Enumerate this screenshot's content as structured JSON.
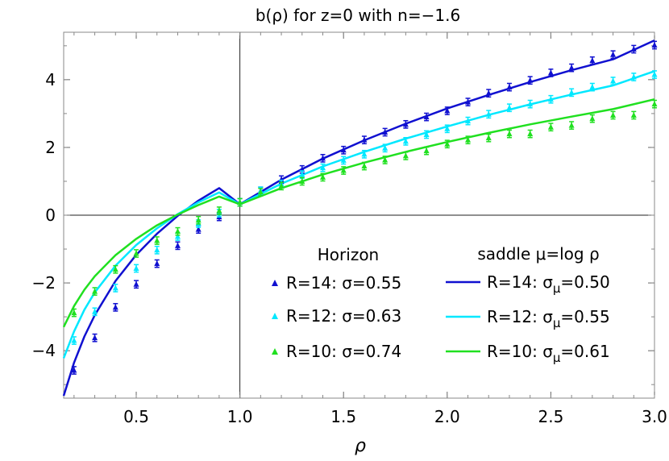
{
  "chart_data": {
    "type": "line",
    "title": "b(ρ) for z=0 with n=−1.6",
    "xlabel": "ρ",
    "ylabel": "",
    "xlim": [
      0.15,
      3.0
    ],
    "ylim": [
      -5.4,
      5.4
    ],
    "x_ticks": [
      0.5,
      1.0,
      1.5,
      2.0,
      2.5,
      3.0
    ],
    "x_tick_labels": [
      "0.5",
      "1.0",
      "1.5",
      "2.0",
      "2.5",
      "3.0"
    ],
    "y_ticks": [
      -4,
      -2,
      0,
      2,
      4
    ],
    "y_tick_labels": [
      "−4",
      "−2",
      "0",
      "2",
      "4"
    ],
    "grid": false,
    "legend_position": "bottom-right",
    "legend": {
      "markers_title": "Horizon",
      "curves_title": "saddle μ=log ρ",
      "marker_entries": [
        "R=14: σ=0.55",
        "R=12: σ=0.63",
        "R=10: σ=0.74"
      ],
      "curve_entries": [
        "R=14: σ_μ=0.50",
        "R=12: σ_μ=0.55",
        "R=10: σ_μ=0.61"
      ]
    },
    "curves": [
      {
        "color": "#1010d0",
        "x": [
          0.15,
          0.2,
          0.25,
          0.3,
          0.4,
          0.5,
          0.6,
          0.7,
          0.8,
          0.9,
          1.0,
          1.2,
          1.4,
          1.6,
          1.8,
          2.0,
          2.2,
          2.4,
          2.6,
          2.8,
          3.0
        ],
        "y": [
          -5.33,
          -4.35,
          -3.58,
          -2.95,
          -1.94,
          -1.17,
          -0.55,
          -0.02,
          0.43,
          0.8,
          0.32,
          1.05,
          1.67,
          2.21,
          2.7,
          3.15,
          3.55,
          3.93,
          4.28,
          4.6,
          5.16
        ]
      },
      {
        "color": "#00e8ff",
        "x": [
          0.15,
          0.2,
          0.25,
          0.3,
          0.4,
          0.5,
          0.6,
          0.7,
          0.8,
          0.9,
          1.0,
          1.2,
          1.4,
          1.6,
          1.8,
          2.0,
          2.2,
          2.4,
          2.6,
          2.8,
          3.0
        ],
        "y": [
          -4.22,
          -3.43,
          -2.79,
          -2.28,
          -1.49,
          -0.88,
          -0.39,
          0.03,
          0.38,
          0.67,
          0.32,
          0.93,
          1.44,
          1.87,
          2.26,
          2.62,
          2.96,
          3.27,
          3.56,
          3.83,
          4.25
        ]
      },
      {
        "color": "#20e020",
        "x": [
          0.15,
          0.2,
          0.25,
          0.3,
          0.4,
          0.5,
          0.6,
          0.7,
          0.8,
          0.9,
          1.0,
          1.2,
          1.4,
          1.6,
          1.8,
          2.0,
          2.2,
          2.4,
          2.6,
          2.8,
          3.0
        ],
        "y": [
          -3.3,
          -2.68,
          -2.2,
          -1.8,
          -1.18,
          -0.7,
          -0.3,
          0.02,
          0.3,
          0.55,
          0.32,
          0.8,
          1.2,
          1.55,
          1.87,
          2.16,
          2.43,
          2.68,
          2.91,
          3.13,
          3.42
        ]
      }
    ],
    "series": [
      {
        "marker": "triangle",
        "color": "#1010d0",
        "x": [
          0.2,
          0.3,
          0.4,
          0.5,
          0.6,
          0.7,
          0.8,
          0.9,
          1.0,
          1.1,
          1.2,
          1.3,
          1.4,
          1.5,
          1.6,
          1.7,
          1.8,
          1.9,
          2.0,
          2.1,
          2.2,
          2.3,
          2.4,
          2.5,
          2.6,
          2.7,
          2.8,
          2.9,
          3.0
        ],
        "y": [
          -4.58,
          -3.62,
          -2.72,
          -2.04,
          -1.43,
          -0.9,
          -0.42,
          -0.05,
          0.38,
          0.72,
          1.05,
          1.35,
          1.68,
          1.92,
          2.22,
          2.45,
          2.68,
          2.9,
          3.08,
          3.34,
          3.6,
          3.78,
          3.98,
          4.2,
          4.35,
          4.56,
          4.74,
          4.9,
          5.02
        ]
      },
      {
        "marker": "triangle",
        "color": "#00e8ff",
        "x": [
          0.2,
          0.3,
          0.4,
          0.5,
          0.6,
          0.7,
          0.8,
          0.9,
          1.0,
          1.1,
          1.2,
          1.3,
          1.4,
          1.5,
          1.6,
          1.7,
          1.8,
          1.9,
          2.0,
          2.1,
          2.2,
          2.3,
          2.4,
          2.5,
          2.6,
          2.7,
          2.8,
          2.9,
          3.0
        ],
        "y": [
          -3.7,
          -2.85,
          -2.15,
          -1.57,
          -1.03,
          -0.63,
          -0.25,
          0.06,
          0.38,
          0.72,
          0.92,
          1.2,
          1.4,
          1.62,
          1.8,
          1.98,
          2.18,
          2.38,
          2.55,
          2.78,
          2.98,
          3.17,
          3.28,
          3.42,
          3.62,
          3.78,
          3.96,
          4.08,
          4.15
        ]
      },
      {
        "marker": "triangle",
        "color": "#20e020",
        "x": [
          0.2,
          0.3,
          0.4,
          0.5,
          0.6,
          0.7,
          0.8,
          0.9,
          1.0,
          1.1,
          1.2,
          1.3,
          1.4,
          1.5,
          1.6,
          1.7,
          1.8,
          1.9,
          2.0,
          2.1,
          2.2,
          2.3,
          2.4,
          2.5,
          2.6,
          2.7,
          2.8,
          2.9,
          3.0
        ],
        "y": [
          -2.88,
          -2.25,
          -1.6,
          -1.13,
          -0.75,
          -0.48,
          -0.15,
          0.13,
          0.38,
          0.68,
          0.86,
          1.0,
          1.12,
          1.32,
          1.45,
          1.63,
          1.75,
          1.9,
          2.1,
          2.22,
          2.28,
          2.4,
          2.4,
          2.6,
          2.65,
          2.85,
          2.95,
          2.95,
          3.28
        ]
      }
    ],
    "error": 0.11
  }
}
